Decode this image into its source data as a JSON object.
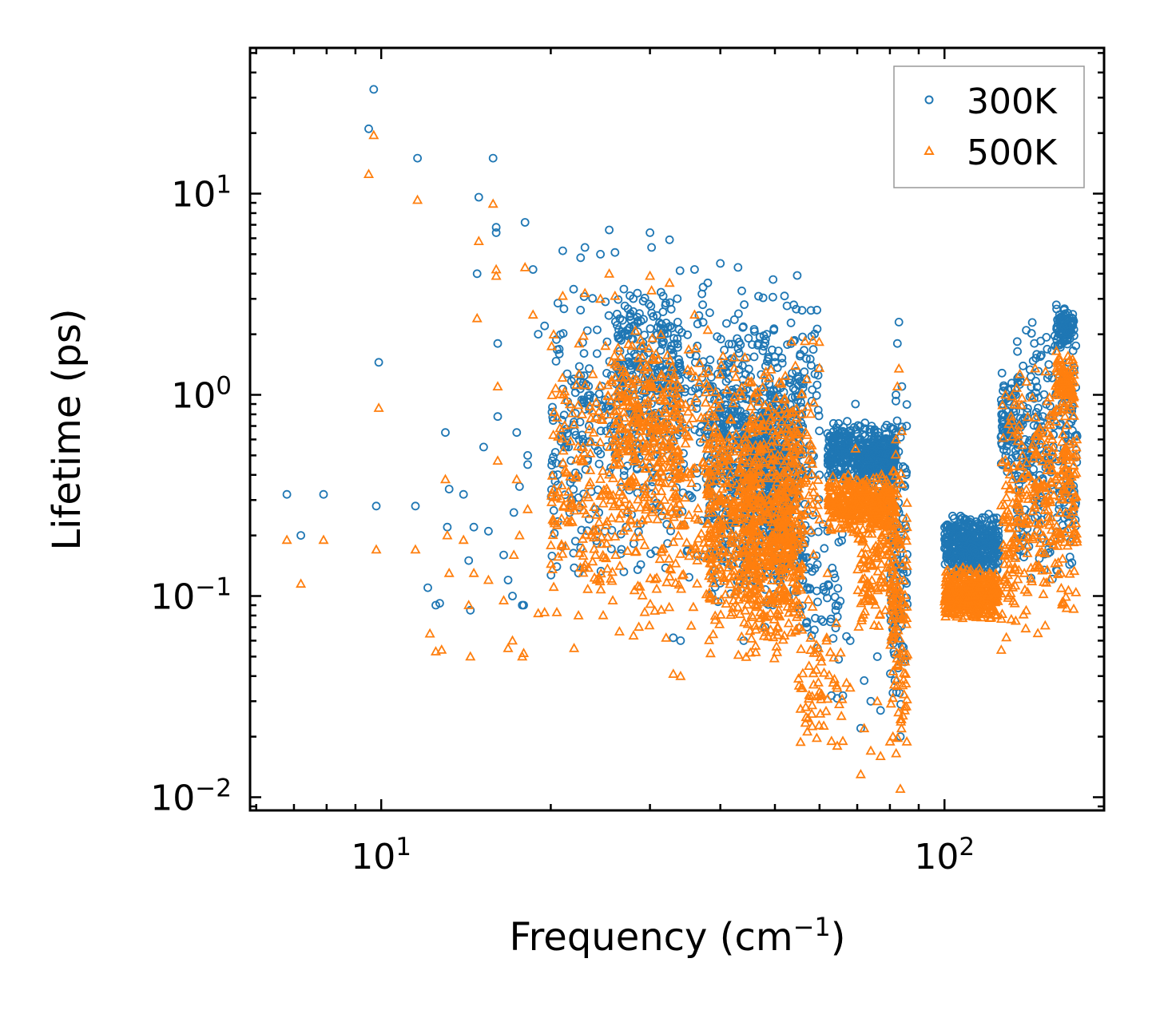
{
  "chart_data": {
    "type": "scatter",
    "xscale": "log",
    "yscale": "log",
    "xlim": [
      5.85,
      192
    ],
    "ylim": [
      0.0086,
      53
    ],
    "xlabel": {
      "text": "Frequency (cm",
      "sup": "−1",
      "suffix": ")"
    },
    "ylabel": "Lifetime (ps)",
    "x_major_ticks": [
      {
        "value": 10,
        "base": "10",
        "exp": "1"
      },
      {
        "value": 100,
        "base": "10",
        "exp": "2"
      }
    ],
    "y_major_ticks": [
      {
        "value": 0.01,
        "base": "10",
        "exp": "−2"
      },
      {
        "value": 0.1,
        "base": "10",
        "exp": "−1"
      },
      {
        "value": 1,
        "base": "10",
        "exp": "0"
      },
      {
        "value": 10,
        "base": "10",
        "exp": "1"
      }
    ],
    "legend": {
      "position": "top-right"
    },
    "series": [
      {
        "name": "300K",
        "marker": "circle",
        "color": "#1f77b4",
        "points": [
          [
            6.8,
            0.32
          ],
          [
            7.2,
            0.2
          ],
          [
            7.9,
            0.32
          ],
          [
            9.5,
            21
          ],
          [
            9.7,
            33
          ],
          [
            9.8,
            0.28
          ],
          [
            9.9,
            1.45
          ],
          [
            11.5,
            0.28
          ],
          [
            11.6,
            15
          ],
          [
            12.1,
            0.11
          ],
          [
            12.5,
            0.09
          ],
          [
            12.7,
            0.092
          ],
          [
            13,
            0.65
          ],
          [
            13.2,
            0.34
          ],
          [
            13.1,
            0.22
          ],
          [
            14,
            0.32
          ],
          [
            14.3,
            0.15
          ],
          [
            14.4,
            0.085
          ],
          [
            14.6,
            0.22
          ],
          [
            14.8,
            4
          ],
          [
            14.9,
            9.6
          ],
          [
            15.2,
            0.55
          ],
          [
            15.5,
            0.21
          ],
          [
            15.8,
            15
          ],
          [
            16,
            6.8
          ],
          [
            16,
            6.4
          ],
          [
            16.1,
            1.8
          ],
          [
            16.1,
            0.78
          ],
          [
            16.5,
            0.16
          ],
          [
            16.8,
            0.12
          ],
          [
            17.1,
            0.1
          ],
          [
            17.2,
            0.26
          ],
          [
            17.4,
            0.65
          ],
          [
            17.6,
            0.35
          ],
          [
            17.8,
            0.09
          ],
          [
            17.9,
            0.09
          ],
          [
            18,
            7.2
          ],
          [
            18.2,
            0.45
          ],
          [
            18.2,
            0.5
          ],
          [
            18.6,
            4.2
          ],
          [
            19,
            2
          ],
          [
            19.5,
            2.2
          ],
          [
            20.2,
            0.4
          ],
          [
            20.5,
            0.14
          ],
          [
            21,
            5.2
          ],
          [
            21.5,
            0.55
          ],
          [
            22,
            1.2
          ],
          [
            22.4,
            0.13
          ],
          [
            22.6,
            4.8
          ],
          [
            23,
            5.4
          ],
          [
            23.4,
            1.35
          ],
          [
            23.6,
            0.33
          ],
          [
            24,
            0.27
          ],
          [
            24.5,
            5
          ],
          [
            25,
            2.9
          ],
          [
            25.4,
            6.6
          ],
          [
            26,
            5.1
          ],
          [
            26.5,
            0.55
          ],
          [
            27,
            0.42
          ],
          [
            28.5,
            3.2
          ],
          [
            30,
            6.4
          ],
          [
            30.2,
            5.4
          ],
          [
            31.5,
            0.25
          ],
          [
            32.5,
            5.9
          ],
          [
            33,
            0.062
          ],
          [
            34,
            0.06
          ],
          [
            36,
            4.2
          ],
          [
            38,
            3.6
          ],
          [
            40,
            4.5
          ],
          [
            43,
            4.3
          ],
          [
            44,
            0.06
          ],
          [
            48,
            0.07
          ],
          [
            52,
            3.1
          ],
          [
            54,
            2.8
          ],
          [
            56,
            0.12
          ],
          [
            57,
            0.07
          ],
          [
            58,
            1.4
          ],
          [
            59.5,
            0.055
          ],
          [
            60,
            0.4
          ],
          [
            62,
            0.21
          ],
          [
            63,
            0.032
          ],
          [
            64.5,
            0.031
          ],
          [
            66,
            0.032
          ],
          [
            67,
            0.063
          ],
          [
            68,
            0.06
          ],
          [
            69.5,
            0.9
          ],
          [
            71,
            0.022
          ],
          [
            72,
            0.038
          ],
          [
            74,
            0.03
          ],
          [
            76,
            0.05
          ],
          [
            77,
            0.027
          ],
          [
            80,
            0.24
          ],
          [
            81,
            0.033
          ],
          [
            82,
            1.0
          ],
          [
            82.5,
            1.8
          ],
          [
            83,
            2.3
          ],
          [
            83.5,
            0.02
          ],
          [
            84,
            1.1
          ],
          [
            84.5,
            0.13
          ],
          [
            85,
            0.047
          ],
          [
            158,
            2.8
          ],
          [
            160,
            2.5
          ],
          [
            163,
            2.2
          ],
          [
            165,
            2.0
          ],
          [
            167,
            1.9
          ]
        ],
        "clusters": [
          {
            "x": [
              20,
              60
            ],
            "y": [
              0.11,
              4.5
            ],
            "n": 700
          },
          {
            "x": [
              26,
              34
            ],
            "y": [
              0.5,
              3.5
            ],
            "n": 180
          },
          {
            "x": [
              38,
              56
            ],
            "y": [
              0.075,
              2.2
            ],
            "n": 500
          },
          {
            "x": [
              44,
              54
            ],
            "y": [
              0.14,
              1.1
            ],
            "n": 200
          },
          {
            "x": [
              55,
              66
            ],
            "y": [
              0.045,
              0.25
            ],
            "n": 60
          },
          {
            "x": [
              62,
              82
            ],
            "y": [
              0.35,
              0.75
            ],
            "n": 400
          },
          {
            "x": [
              70,
              82
            ],
            "y": [
              0.3,
              0.6
            ],
            "n": 120
          },
          {
            "x": [
              80,
              86
            ],
            "y": [
              0.024,
              1.3
            ],
            "n": 120
          },
          {
            "x": [
              100,
              125
            ],
            "y": [
              0.12,
              0.26
            ],
            "n": 420
          },
          {
            "x": [
              126,
              134
            ],
            "y": [
              0.38,
              1.3
            ],
            "n": 80
          },
          {
            "x": [
              134,
              172
            ],
            "y": [
              0.1,
              2.6
            ],
            "n": 280
          },
          {
            "x": [
              158,
              170
            ],
            "y": [
              1.6,
              2.8
            ],
            "n": 80
          }
        ]
      },
      {
        "name": "500K",
        "marker": "triangle",
        "color": "#ff7f0e",
        "points": [
          [
            6.8,
            0.19
          ],
          [
            7.2,
            0.115
          ],
          [
            7.9,
            0.19
          ],
          [
            9.5,
            12.5
          ],
          [
            9.7,
            19.5
          ],
          [
            9.8,
            0.17
          ],
          [
            9.9,
            0.86
          ],
          [
            11.5,
            0.17
          ],
          [
            11.6,
            9.3
          ],
          [
            12.2,
            0.065
          ],
          [
            12.5,
            0.053
          ],
          [
            12.8,
            0.054
          ],
          [
            13,
            0.38
          ],
          [
            13.2,
            0.13
          ],
          [
            13.1,
            0.2
          ],
          [
            14,
            0.19
          ],
          [
            14.3,
            0.09
          ],
          [
            14.4,
            0.05
          ],
          [
            14.6,
            0.13
          ],
          [
            14.8,
            2.4
          ],
          [
            14.9,
            5.8
          ],
          [
            15.5,
            0.12
          ],
          [
            15.8,
            8.9
          ],
          [
            16,
            4.2
          ],
          [
            16,
            3.9
          ],
          [
            16.1,
            1.1
          ],
          [
            16.1,
            0.47
          ],
          [
            16.5,
            0.095
          ],
          [
            16.8,
            0.055
          ],
          [
            17.1,
            0.06
          ],
          [
            17.2,
            0.16
          ],
          [
            17.4,
            0.38
          ],
          [
            17.6,
            0.2
          ],
          [
            17.8,
            0.05
          ],
          [
            17.9,
            0.052
          ],
          [
            18,
            4.3
          ],
          [
            18.2,
            0.27
          ],
          [
            18.6,
            2.5
          ],
          [
            19,
            0.082
          ],
          [
            19.5,
            0.083
          ],
          [
            20.2,
            0.24
          ],
          [
            20.5,
            0.083
          ],
          [
            21,
            3.1
          ],
          [
            21.5,
            0.33
          ],
          [
            22,
            0.055
          ],
          [
            22.4,
            0.08
          ],
          [
            23,
            3.2
          ],
          [
            23.6,
            0.2
          ],
          [
            24,
            0.16
          ],
          [
            24.5,
            3
          ],
          [
            25,
            1.75
          ],
          [
            25.4,
            4
          ],
          [
            26,
            3.1
          ],
          [
            26.5,
            0.33
          ],
          [
            30,
            3.9
          ],
          [
            30.2,
            3.3
          ],
          [
            32.5,
            3.6
          ],
          [
            33,
            0.041
          ],
          [
            34,
            0.04
          ],
          [
            36,
            2.5
          ],
          [
            38,
            2.1
          ],
          [
            60,
            0.24
          ],
          [
            62,
            0.13
          ],
          [
            63,
            0.019
          ],
          [
            64.5,
            0.018
          ],
          [
            66,
            0.019
          ],
          [
            67,
            0.037
          ],
          [
            68,
            0.035
          ],
          [
            69.5,
            0.54
          ],
          [
            71,
            0.013
          ],
          [
            72,
            0.022
          ],
          [
            74,
            0.017
          ],
          [
            76,
            0.03
          ],
          [
            77,
            0.016
          ],
          [
            80,
            0.14
          ],
          [
            81,
            0.02
          ],
          [
            82,
            0.6
          ],
          [
            82.5,
            1.1
          ],
          [
            83,
            1.35
          ],
          [
            83.5,
            0.011
          ],
          [
            84,
            0.66
          ],
          [
            84.5,
            0.078
          ],
          [
            85,
            0.027
          ],
          [
            158,
            1.65
          ],
          [
            160,
            1.5
          ],
          [
            163,
            1.3
          ],
          [
            165,
            1.2
          ],
          [
            167,
            1.1
          ]
        ],
        "clusters": [
          {
            "x": [
              20,
              60
            ],
            "y": [
              0.055,
              2.6
            ],
            "n": 700
          },
          {
            "x": [
              26,
              34
            ],
            "y": [
              0.25,
              2.0
            ],
            "n": 180
          },
          {
            "x": [
              38,
              56
            ],
            "y": [
              0.045,
              1.3
            ],
            "n": 500
          },
          {
            "x": [
              44,
              54
            ],
            "y": [
              0.05,
              0.6
            ],
            "n": 200
          },
          {
            "x": [
              55,
              66
            ],
            "y": [
              0.016,
              0.1
            ],
            "n": 60
          },
          {
            "x": [
              62,
              82
            ],
            "y": [
              0.2,
              0.42
            ],
            "n": 400
          },
          {
            "x": [
              70,
              82
            ],
            "y": [
              0.06,
              0.35
            ],
            "n": 120
          },
          {
            "x": [
              80,
              86
            ],
            "y": [
              0.012,
              0.7
            ],
            "n": 120
          },
          {
            "x": [
              100,
              125
            ],
            "y": [
              0.075,
              0.14
            ],
            "n": 420
          },
          {
            "x": [
              126,
              134
            ],
            "y": [
              0.045,
              1.2
            ],
            "n": 80
          },
          {
            "x": [
              134,
              172
            ],
            "y": [
              0.058,
              1.6
            ],
            "n": 280
          },
          {
            "x": [
              158,
              170
            ],
            "y": [
              0.8,
              1.6
            ],
            "n": 80
          }
        ]
      }
    ]
  }
}
